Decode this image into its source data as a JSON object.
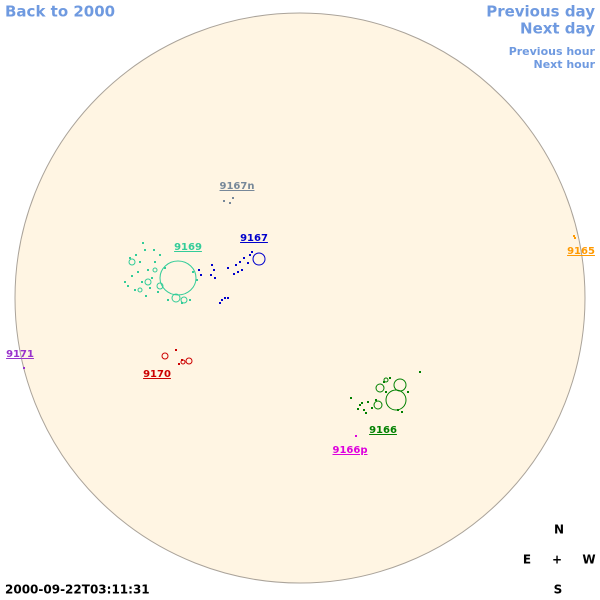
{
  "nav": {
    "back": "Back to 2000",
    "previous_day": "Previous day",
    "next_day": "Next day",
    "previous_hour": "Previous hour",
    "next_hour": "Next hour"
  },
  "regions": [
    {
      "label": "9167n",
      "color": "#778899"
    },
    {
      "label": "9169",
      "color": "#33cc99"
    },
    {
      "label": "9167",
      "color": "#0000cc"
    },
    {
      "label": "9165",
      "color": "#ff9900"
    },
    {
      "label": "9171",
      "color": "#9933cc"
    },
    {
      "label": "9170",
      "color": "#cc0000"
    },
    {
      "label": "9166",
      "color": "#008000"
    },
    {
      "label": "9166p",
      "color": "#dd00dd"
    }
  ],
  "compass": {
    "north": "N",
    "east": "E",
    "center": "+",
    "west": "W",
    "south": "S"
  },
  "timestamp": "2000-09-22T03:11:31"
}
